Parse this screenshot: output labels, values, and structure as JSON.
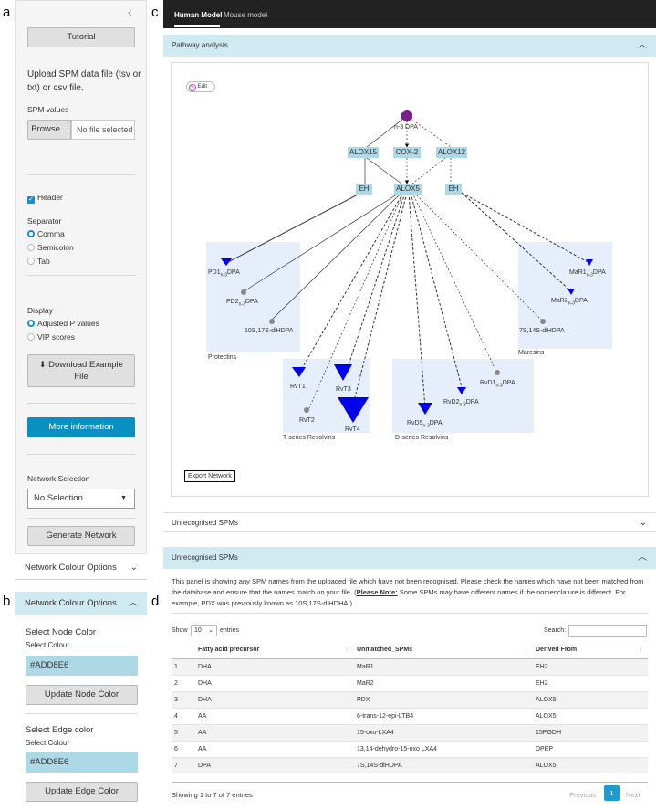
{
  "labels": {
    "a": "a",
    "b": "b",
    "c": "c",
    "d": "d"
  },
  "sidebar": {
    "collapse_glyph": "‹",
    "tutorial": "Tutorial",
    "upload_text": "Upload SPM data file (tsv or txt) or csv file.",
    "spm_values": "SPM values",
    "browse": "Browse...",
    "no_file": "No file selected",
    "header_label": "Header",
    "separator": "Separator",
    "sep_options": [
      "Comma",
      "Semicolon",
      "Tab"
    ],
    "display": "Display",
    "display_options": [
      "Adjusted P values",
      "VIP scores"
    ],
    "download": "Download Example File",
    "more_info": "More information",
    "network_selection": "Network Selection",
    "no_selection": "No Selection",
    "generate": "Generate Network",
    "network_colour": "Network Colour Options"
  },
  "colour_panel": {
    "title": "Network Colour Options",
    "node_title": "Select Node Color",
    "node_sub": "Select Colour",
    "node_value": "#ADD8E6",
    "node_btn": "Update Node Color",
    "edge_title": "Select Edge color",
    "edge_sub": "Select Colour",
    "edge_value": "#ADD8E6",
    "edge_btn": "Update Edge Color"
  },
  "tabs": [
    "Human Model",
    "Mouse model"
  ],
  "pathway_header": "Pathway analysis",
  "edit": "Edit",
  "export": "Export Network",
  "network": {
    "root": "n-3 DPA",
    "enzymes": [
      "ALOX15",
      "COX-2",
      "ALOX12",
      "EH",
      "ALOX5",
      "EH"
    ],
    "groups": [
      "Protectins",
      "T-series Resolvins",
      "D-series Resolvins",
      "Maresins"
    ],
    "pd1": {
      "a": "PD1",
      "s": "n-3",
      "b": "DPA"
    },
    "pd2": {
      "a": "PD2",
      "s": "n-3",
      "b": "DPA"
    },
    "p10s": "10S,17S-diHDPA",
    "mar1": {
      "a": "MaR1",
      "s": "n-3",
      "b": "DPA"
    },
    "mar2": {
      "a": "MaR2",
      "s": "n-3",
      "b": "DPA"
    },
    "m7s": "7S,14S-diHDPA",
    "rvt": [
      "RvT1",
      "RvT2",
      "RvT3",
      "RvT4"
    ],
    "rvd1": {
      "a": "RvD1",
      "s": "n-3",
      "b": "DPA"
    },
    "rvd2": {
      "a": "RvD2",
      "s": "n-3",
      "b": "DPA"
    },
    "rvd5": {
      "a": "RvD5",
      "s": "n-3",
      "b": "DPA"
    }
  },
  "colors": {
    "node": "#add8e6",
    "triangle": "#0000ee",
    "circle": "#888888",
    "hex": "#7b1f8a"
  },
  "unrecognised_collapsed": "Unrecognised SPMs",
  "unrecognised_header": "Unrecognised SPMs",
  "info_text": {
    "main": "This panel is showing any SPM names from the uploaded file which have not been recognised. Please check the names which have not been matched from the database and ensure that the names match on your file. (",
    "note": "Please Note:",
    "rest": " Some SPMs may have different names if the nomenclature is different. For example, PDX was previously known as 10S,17S-diHDHA.)"
  },
  "table_controls": {
    "show": "Show",
    "entries_value": "10",
    "entries": "entries",
    "search": "Search:"
  },
  "table": {
    "headers": [
      "",
      "Fatty acid precursor",
      "Unmatched_SPMs",
      "Derived From"
    ],
    "rows": [
      [
        "1",
        "DHA",
        "MaR1",
        "EH2"
      ],
      [
        "2",
        "DHA",
        "MaR2",
        "EH2"
      ],
      [
        "3",
        "DHA",
        "PDX",
        "ALOX5"
      ],
      [
        "4",
        "AA",
        "6-trans-12-epi-LTB4",
        "ALOX5"
      ],
      [
        "5",
        "AA",
        "15-oxo-LXA4",
        "15PGDH"
      ],
      [
        "6",
        "AA",
        "13,14-dehydro-15-oxo LXA4",
        "DPEP"
      ],
      [
        "7",
        "DPA",
        "7S,14S-diHDPA",
        "ALOX5"
      ]
    ]
  },
  "footer": {
    "showing": "Showing 1 to 7 of 7 entries",
    "prev": "Previous",
    "page": "1",
    "next": "Next"
  }
}
